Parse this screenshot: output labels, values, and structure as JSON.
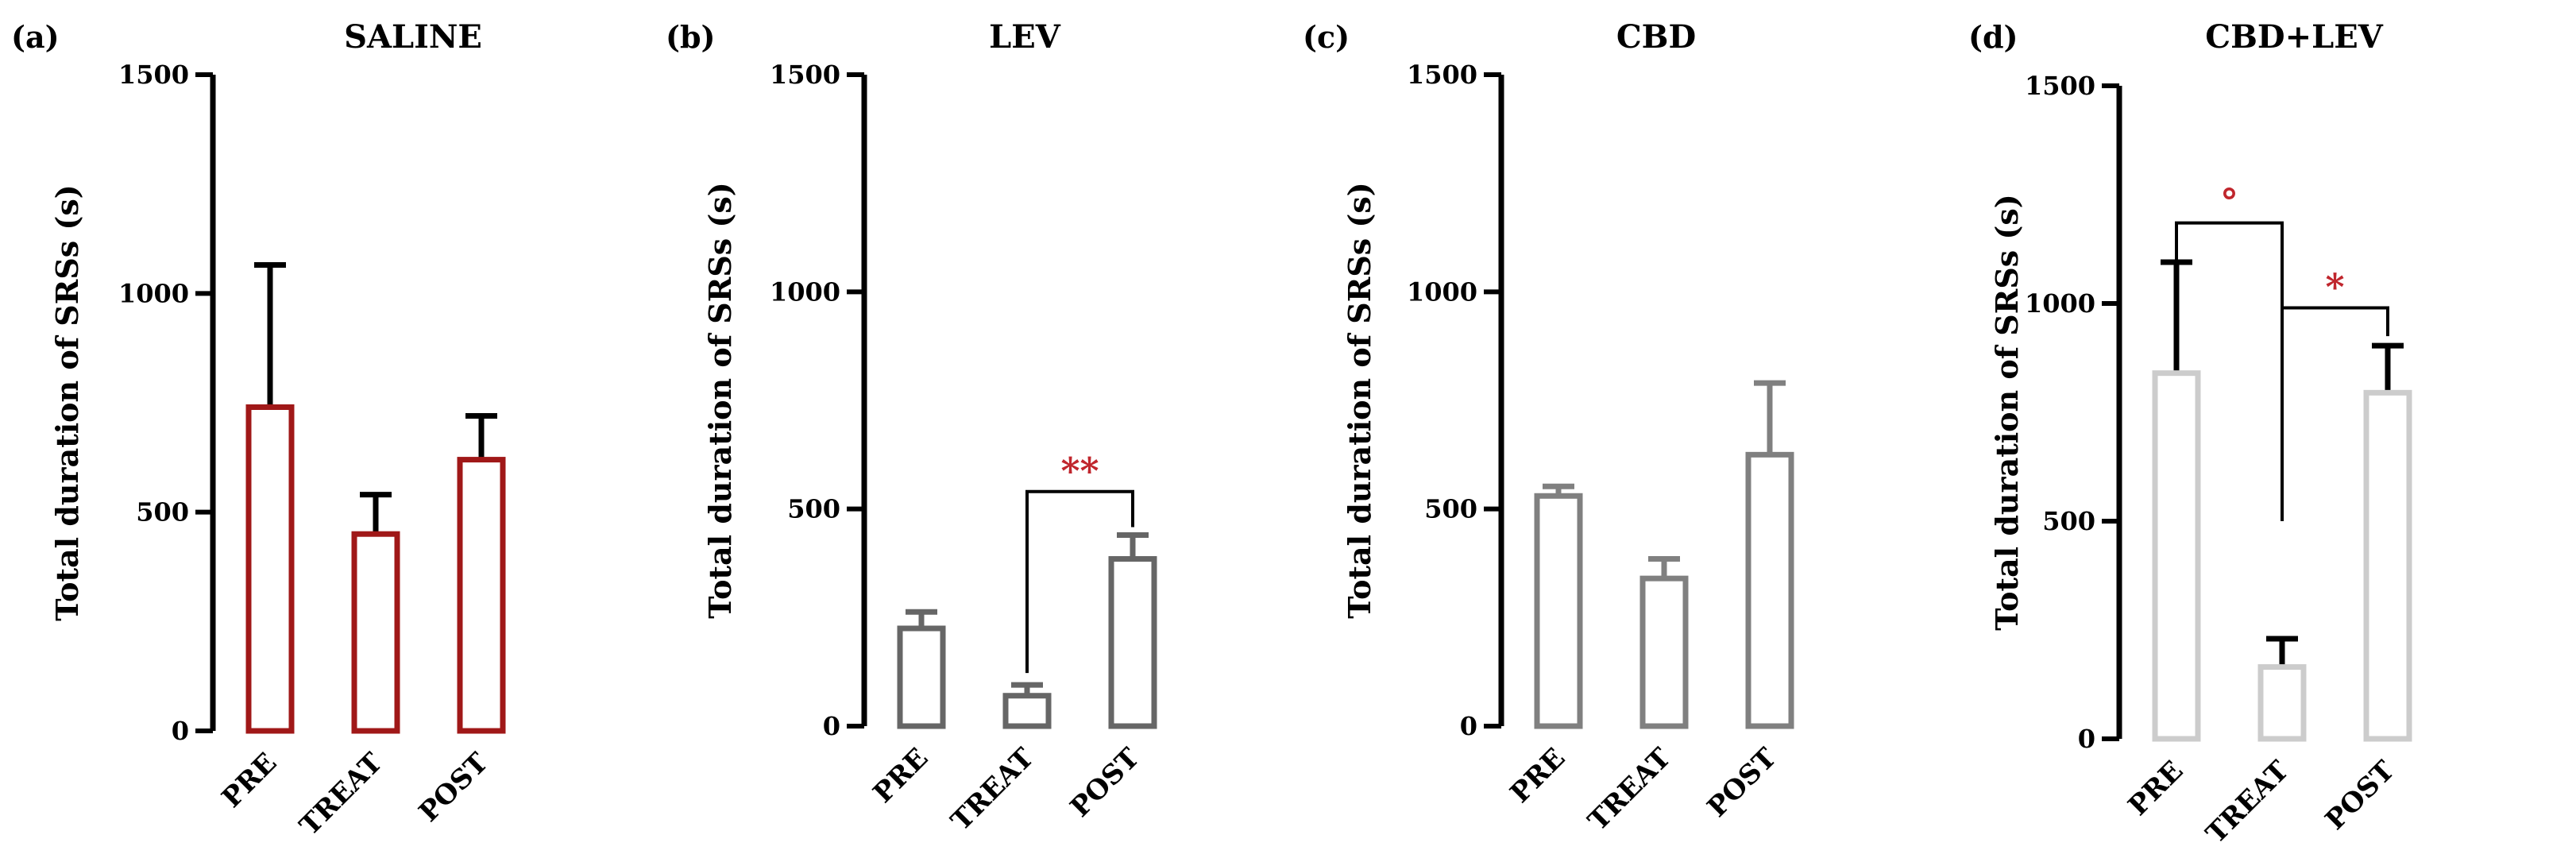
{
  "chart_data": [
    {
      "type": "bar",
      "panel_label": "(a)",
      "title": "SALINE",
      "ylabel": "Total duration of SRSs (s)",
      "ylim": [
        0,
        1500
      ],
      "yticks": [
        "0",
        "500",
        "1000",
        "1500"
      ],
      "categories": [
        "PRE",
        "TREAT",
        "POST"
      ],
      "values": [
        740,
        450,
        620
      ],
      "errors": [
        325,
        90,
        100
      ],
      "color": "#a01818",
      "error_color": "#000000",
      "significance": []
    },
    {
      "type": "bar",
      "panel_label": "(b)",
      "title": "LEV",
      "ylabel": "Total duration of SRSs (s)",
      "ylim": [
        0,
        1500
      ],
      "yticks": [
        "0",
        "500",
        "1000",
        "1500"
      ],
      "categories": [
        "PRE",
        "TREAT",
        "POST"
      ],
      "values": [
        225,
        70,
        385
      ],
      "errors": [
        38,
        25,
        55
      ],
      "color": "#666666",
      "error_color": "#666666",
      "significance": [
        {
          "from": 1,
          "to": 2,
          "label": "**",
          "y": 540
        }
      ]
    },
    {
      "type": "bar",
      "panel_label": "(c)",
      "title": "CBD",
      "ylabel": "Total duration of SRSs (s)",
      "ylim": [
        0,
        1500
      ],
      "yticks": [
        "0",
        "500",
        "1000",
        "1500"
      ],
      "categories": [
        "PRE",
        "TREAT",
        "POST"
      ],
      "values": [
        530,
        340,
        625
      ],
      "errors": [
        22,
        45,
        165
      ],
      "color": "#808080",
      "error_color": "#808080",
      "significance": []
    },
    {
      "type": "bar",
      "panel_label": "(d)",
      "title": "CBD+LEV",
      "ylabel": "Total duration of SRSs (s)",
      "ylim": [
        0,
        1500
      ],
      "yticks": [
        "0",
        "500",
        "1000",
        "1500"
      ],
      "categories": [
        "PRE",
        "TREAT",
        "POST"
      ],
      "values": [
        840,
        165,
        795
      ],
      "errors": [
        255,
        65,
        108
      ],
      "color": "#cccccc",
      "error_color": "#000000",
      "significance": [
        {
          "from": 0,
          "to": 1,
          "label": "°",
          "y": 1185
        },
        {
          "from": 1,
          "to": 2,
          "label": "*",
          "y": 990
        }
      ]
    }
  ],
  "colors": {
    "axis": "#000000",
    "annotation": "#c0262d"
  }
}
